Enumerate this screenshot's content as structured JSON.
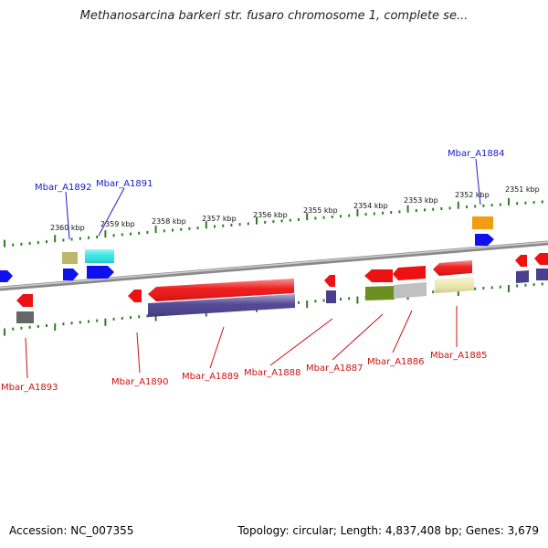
{
  "title": "Methanosarcina barkeri str. fusaro chromosome 1, complete se...",
  "footer": {
    "accession": "Accession: NC_007355",
    "summary": "Topology: circular; Length: 4,837,408 bp; Genes: 3,679"
  },
  "kbp_labels": [
    "2360 kbp",
    "2359 kbp",
    "2358 kbp",
    "2357 kbp",
    "2356 kbp",
    "2355 kbp",
    "2354 kbp",
    "2353 kbp",
    "2352 kbp",
    "2351 kbp"
  ],
  "gene_labels": {
    "top": [
      "Mbar_A1892",
      "Mbar_A1891",
      "Mbar_A1884"
    ],
    "bottom": [
      "Mbar_A1893",
      "Mbar_A1890",
      "Mbar_A1889",
      "Mbar_A1888",
      "Mbar_A1887",
      "Mbar_A1886",
      "Mbar_A1885"
    ]
  },
  "colors": {
    "top_label": "#1a1acc",
    "bottom_label": "#cc1111",
    "tick": "#2e7d22",
    "backbone": "#8a8a8a",
    "red": "#ee1111",
    "blue": "#1010ee",
    "navy": "#4a3f8f",
    "cyan": "#2ee6e6",
    "khaki": "#bdb76b",
    "orange": "#f39c12",
    "olive": "#6b8e23",
    "silver": "#c0c0c0",
    "pale": "#eee8aa",
    "gray": "#666666"
  }
}
